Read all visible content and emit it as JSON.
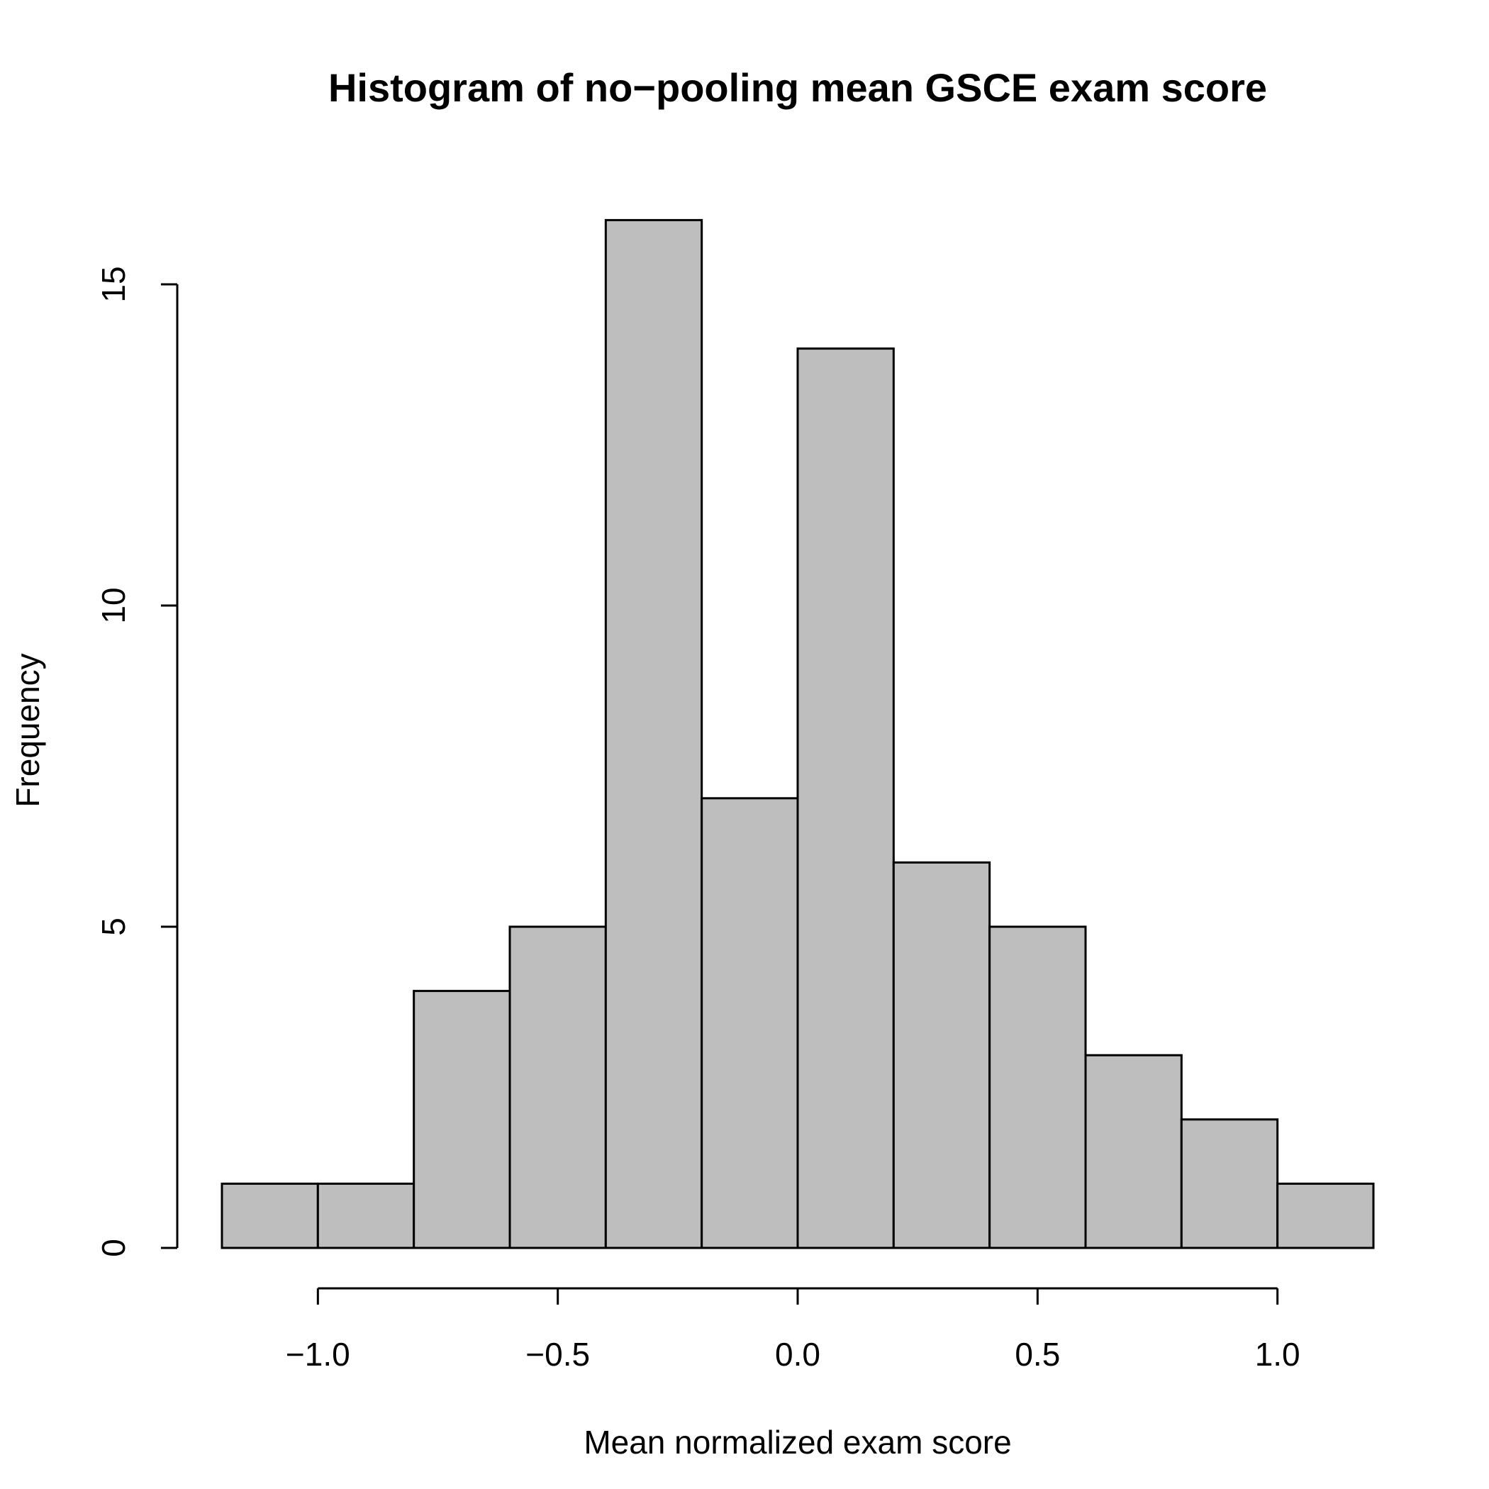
{
  "chart_data": {
    "type": "bar",
    "title": "Histogram of no−pooling mean GSCE exam score",
    "xlabel": "Mean normalized exam score",
    "ylabel": "Frequency",
    "bin_edges": [
      -1.2,
      -1.0,
      -0.8,
      -0.6,
      -0.4,
      -0.2,
      0.0,
      0.2,
      0.4,
      0.6,
      0.8,
      1.0,
      1.2
    ],
    "values": [
      1,
      1,
      4,
      5,
      16,
      7,
      14,
      6,
      5,
      3,
      2,
      1
    ],
    "xlim": [
      -1.2,
      1.2
    ],
    "ylim": [
      0,
      16
    ],
    "x_ticks": [
      {
        "value": -1.0,
        "label": "−1.0"
      },
      {
        "value": -0.5,
        "label": "−0.5"
      },
      {
        "value": 0.0,
        "label": "0.0"
      },
      {
        "value": 0.5,
        "label": "0.5"
      },
      {
        "value": 1.0,
        "label": "1.0"
      }
    ],
    "y_ticks": [
      {
        "value": 0,
        "label": "0"
      },
      {
        "value": 5,
        "label": "5"
      },
      {
        "value": 10,
        "label": "10"
      },
      {
        "value": 15,
        "label": "15"
      }
    ],
    "bar_fill": "#bebebe",
    "bar_stroke": "#000000",
    "grid": false,
    "legend": "none"
  }
}
